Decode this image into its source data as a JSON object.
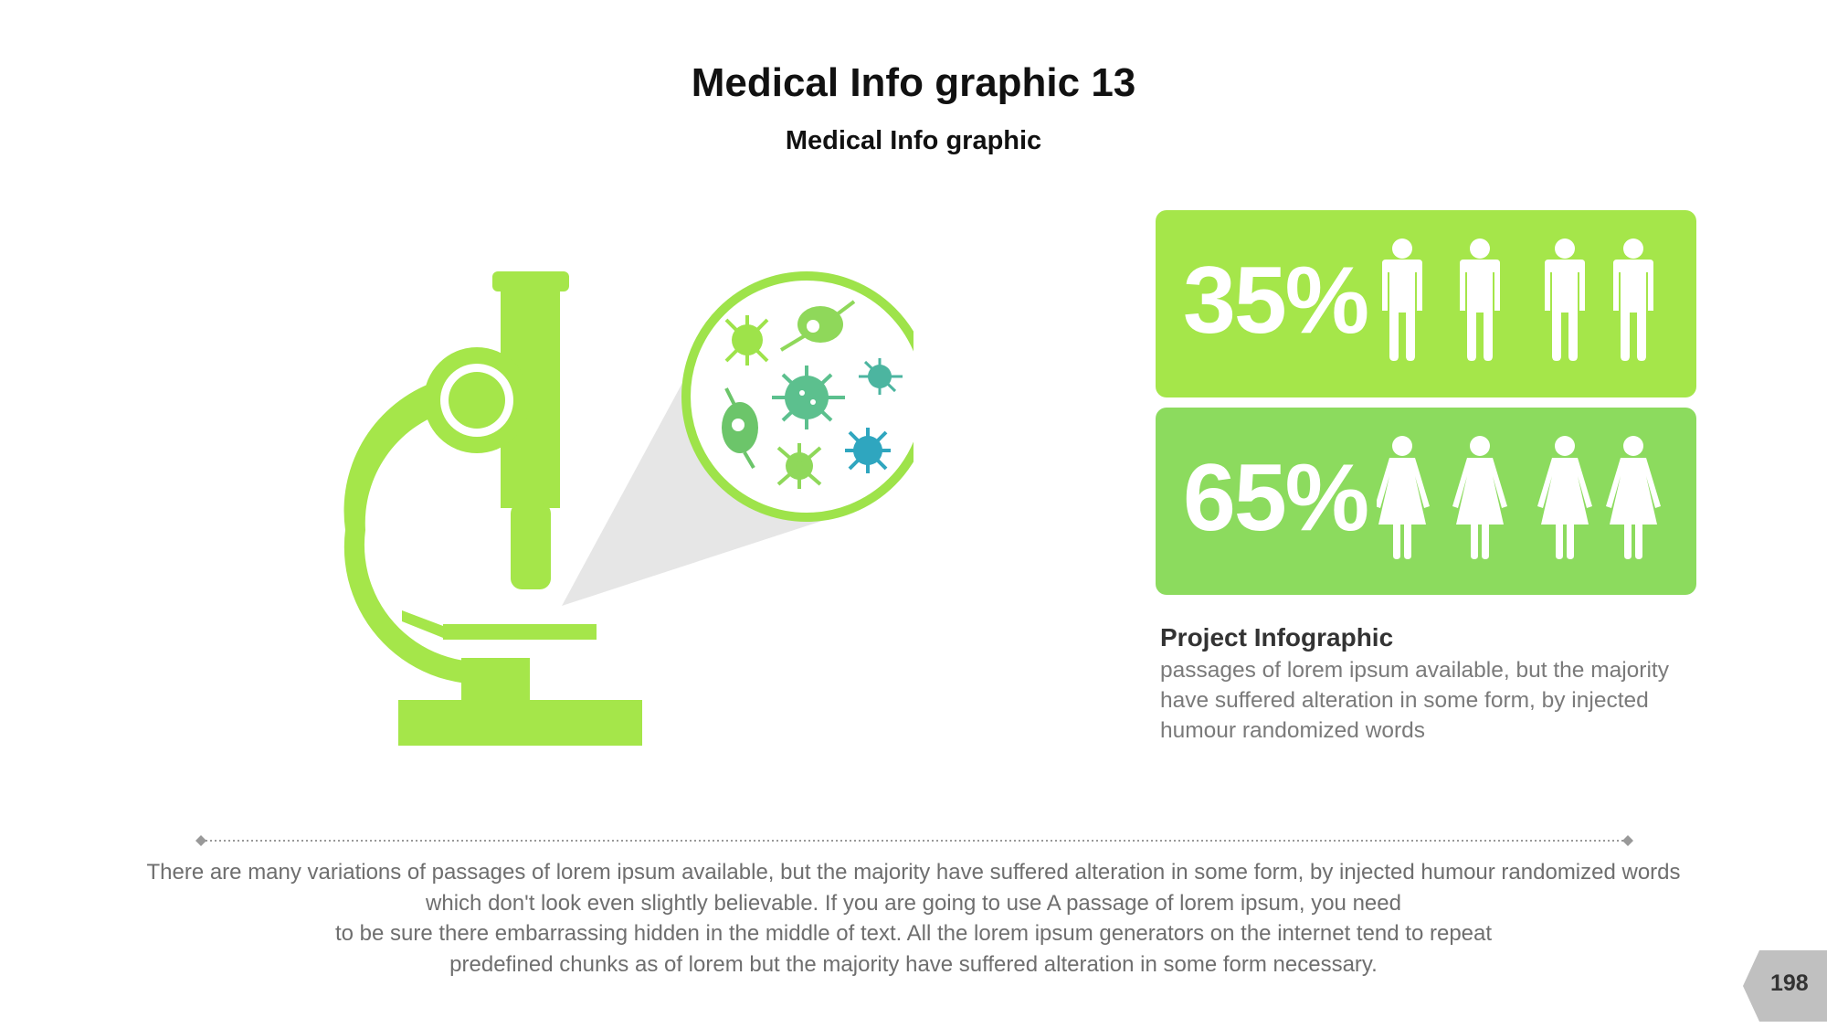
{
  "header": {
    "title": "Medical Info graphic 13",
    "subtitle": "Medical Info graphic"
  },
  "stats": [
    {
      "value": "35%",
      "icon": "male-person-icon",
      "count": 4,
      "color": "#a5e64a"
    },
    {
      "value": "65%",
      "icon": "female-person-icon",
      "count": 4,
      "color": "#8cdb5e"
    }
  ],
  "project": {
    "title": "Project Infographic",
    "lines": [
      "passages of lorem ipsum available, but the majority",
      "have suffered alteration in some form, by injected",
      "humour randomized words"
    ]
  },
  "paragraph": {
    "lines": [
      "There are many variations of passages of lorem ipsum available, but the majority have suffered alteration in some form, by injected humour randomized words",
      "which don't look even slightly believable. If you are going to use A passage of lorem ipsum, you need",
      "to be sure there embarrassing hidden in the middle of text. All the lorem ipsum generators on the internet tend to repeat",
      "predefined chunks as of lorem but the majority have suffered alteration in some form  necessary."
    ]
  },
  "page_number": "198",
  "colors": {
    "accent": "#a5e64a",
    "accent2": "#8cdb5e",
    "virus_teal": "#5cc08e",
    "virus_blue": "#2fa6bf"
  }
}
